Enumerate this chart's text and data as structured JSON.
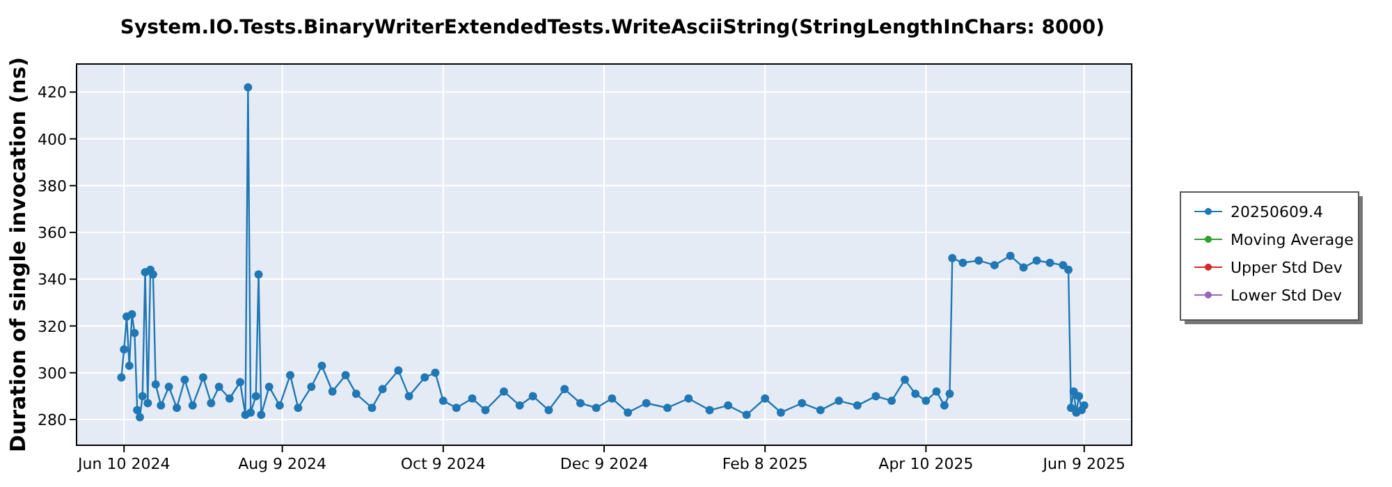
{
  "chart_data": {
    "type": "line",
    "title": "System.IO.Tests.BinaryWriterExtendedTests.WriteAsciiString(StringLengthInChars: 8000)",
    "ylabel": "Duration of single invocation (ns)",
    "xlim": [
      "2024-05-23",
      "2025-06-27"
    ],
    "ylim": [
      269,
      432
    ],
    "xticks": [
      {
        "value": "2024-06-10",
        "label": "Jun 10 2024"
      },
      {
        "value": "2024-08-09",
        "label": "Aug 9 2024"
      },
      {
        "value": "2024-10-09",
        "label": "Oct 9 2024"
      },
      {
        "value": "2024-12-09",
        "label": "Dec 9 2024"
      },
      {
        "value": "2025-02-08",
        "label": "Feb 8 2025"
      },
      {
        "value": "2025-04-10",
        "label": "Apr 10 2025"
      },
      {
        "value": "2025-06-09",
        "label": "Jun 9 2025"
      }
    ],
    "yticks": [
      280,
      300,
      320,
      340,
      360,
      380,
      400,
      420
    ],
    "grid": true,
    "legend": "right",
    "marker": "circle",
    "line_style": "solid",
    "x": [
      "2024-06-09",
      "2024-06-10",
      "2024-06-11",
      "2024-06-12",
      "2024-06-13",
      "2024-06-14",
      "2024-06-15",
      "2024-06-16",
      "2024-06-17",
      "2024-06-18",
      "2024-06-19",
      "2024-06-20",
      "2024-06-21",
      "2024-06-22",
      "2024-06-24",
      "2024-06-27",
      "2024-06-30",
      "2024-07-03",
      "2024-07-06",
      "2024-07-10",
      "2024-07-13",
      "2024-07-16",
      "2024-07-20",
      "2024-07-24",
      "2024-07-26",
      "2024-07-27",
      "2024-07-28",
      "2024-07-30",
      "2024-07-31",
      "2024-08-01",
      "2024-08-04",
      "2024-08-08",
      "2024-08-12",
      "2024-08-15",
      "2024-08-20",
      "2024-08-24",
      "2024-08-28",
      "2024-09-02",
      "2024-09-06",
      "2024-09-12",
      "2024-09-16",
      "2024-09-22",
      "2024-09-26",
      "2024-10-02",
      "2024-10-06",
      "2024-10-09",
      "2024-10-14",
      "2024-10-20",
      "2024-10-25",
      "2024-11-01",
      "2024-11-07",
      "2024-11-12",
      "2024-11-18",
      "2024-11-24",
      "2024-11-30",
      "2024-12-06",
      "2024-12-12",
      "2024-12-18",
      "2024-12-25",
      "2025-01-02",
      "2025-01-10",
      "2025-01-18",
      "2025-01-25",
      "2025-02-01",
      "2025-02-08",
      "2025-02-14",
      "2025-02-22",
      "2025-03-01",
      "2025-03-08",
      "2025-03-15",
      "2025-03-22",
      "2025-03-28",
      "2025-04-02",
      "2025-04-06",
      "2025-04-10",
      "2025-04-14",
      "2025-04-17",
      "2025-04-19",
      "2025-04-20",
      "2025-04-24",
      "2025-04-30",
      "2025-05-06",
      "2025-05-12",
      "2025-05-17",
      "2025-05-22",
      "2025-05-27",
      "2025-06-01",
      "2025-06-03",
      "2025-06-04",
      "2025-06-05",
      "2025-06-06",
      "2025-06-07",
      "2025-06-08",
      "2025-06-09"
    ],
    "series": [
      {
        "name": "20250609.4",
        "color": "#1f77b4",
        "values": [
          298,
          310,
          324,
          303,
          325,
          317,
          284,
          281,
          290,
          343,
          287,
          344,
          342,
          295,
          286,
          294,
          285,
          297,
          286,
          298,
          287,
          294,
          289,
          296,
          282,
          422,
          283,
          290,
          342,
          282,
          294,
          286,
          299,
          285,
          294,
          303,
          292,
          299,
          291,
          285,
          293,
          301,
          290,
          298,
          300,
          288,
          285,
          289,
          284,
          292,
          286,
          290,
          284,
          293,
          287,
          285,
          289,
          283,
          287,
          285,
          289,
          284,
          286,
          282,
          289,
          283,
          287,
          284,
          288,
          286,
          290,
          288,
          297,
          291,
          288,
          292,
          286,
          291,
          349,
          347,
          348,
          346,
          350,
          345,
          348,
          347,
          346,
          344,
          285,
          292,
          283,
          290,
          284,
          286
        ]
      },
      {
        "name": "Moving Average",
        "color": "#2ca02c",
        "values": [
          null,
          null,
          null,
          null,
          null,
          null,
          null,
          null,
          null,
          null,
          null,
          null,
          null,
          null,
          null,
          null,
          null,
          null,
          null,
          null,
          null,
          null,
          null,
          null,
          null,
          null,
          null,
          null,
          null,
          null,
          null,
          null,
          null,
          null,
          null,
          null,
          null,
          null,
          null,
          null,
          null,
          null,
          null,
          null,
          null,
          null,
          null,
          null,
          null,
          null,
          null,
          null,
          null,
          null,
          null,
          null,
          null,
          null,
          null,
          null,
          null,
          null,
          null,
          null,
          null,
          null,
          null,
          null,
          null,
          null,
          null,
          null,
          null,
          null,
          null,
          null,
          null,
          null,
          null,
          null,
          null,
          null,
          null,
          null,
          null,
          null,
          null,
          null,
          null,
          null,
          null,
          null,
          null,
          null
        ]
      },
      {
        "name": "Upper Std Dev",
        "color": "#d62728",
        "values": [
          null,
          null,
          null,
          null,
          null,
          null,
          null,
          null,
          null,
          null,
          null,
          null,
          null,
          null,
          null,
          null,
          null,
          null,
          null,
          null,
          null,
          null,
          null,
          null,
          null,
          null,
          null,
          null,
          null,
          null,
          null,
          null,
          null,
          null,
          null,
          null,
          null,
          null,
          null,
          null,
          null,
          null,
          null,
          null,
          null,
          null,
          null,
          null,
          null,
          null,
          null,
          null,
          null,
          null,
          null,
          null,
          null,
          null,
          null,
          null,
          null,
          null,
          null,
          null,
          null,
          null,
          null,
          null,
          null,
          null,
          null,
          null,
          null,
          null,
          null,
          null,
          null,
          null,
          null,
          null,
          null,
          null,
          null,
          null,
          null,
          null,
          null,
          null,
          null,
          null,
          null,
          null,
          null,
          null
        ]
      },
      {
        "name": "Lower Std Dev",
        "color": "#9467bd",
        "values": [
          null,
          null,
          null,
          null,
          null,
          null,
          null,
          null,
          null,
          null,
          null,
          null,
          null,
          null,
          null,
          null,
          null,
          null,
          null,
          null,
          null,
          null,
          null,
          null,
          null,
          null,
          null,
          null,
          null,
          null,
          null,
          null,
          null,
          null,
          null,
          null,
          null,
          null,
          null,
          null,
          null,
          null,
          null,
          null,
          null,
          null,
          null,
          null,
          null,
          null,
          null,
          null,
          null,
          null,
          null,
          null,
          null,
          null,
          null,
          null,
          null,
          null,
          null,
          null,
          null,
          null,
          null,
          null,
          null,
          null,
          null,
          null,
          null,
          null,
          null,
          null,
          null,
          null,
          null,
          null,
          null,
          null,
          null,
          null,
          null,
          null,
          null,
          null,
          null,
          null,
          null,
          null,
          null,
          null
        ]
      }
    ]
  }
}
